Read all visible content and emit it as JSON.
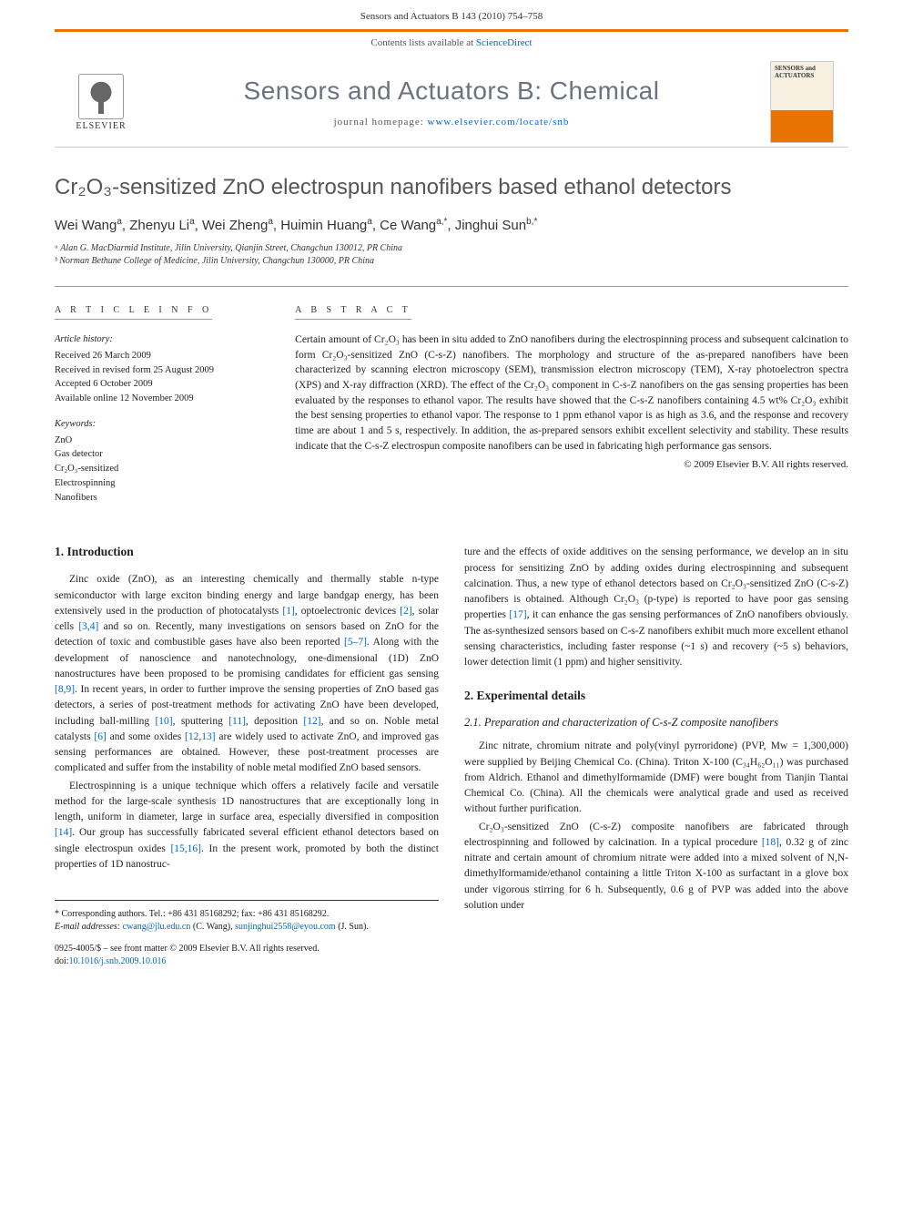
{
  "header": {
    "running_head": "Sensors and Actuators B 143 (2010) 754–758"
  },
  "banner": {
    "contents_text": "Contents lists available at ",
    "contents_link": "ScienceDirect",
    "journal_title": "Sensors and Actuators B: Chemical",
    "homepage_label": "journal homepage: ",
    "homepage_url": "www.elsevier.com/locate/snb",
    "publisher": "ELSEVIER",
    "cover_text": "SENSORS and ACTUATORS"
  },
  "article": {
    "title": "Cr₂O₃-sensitized ZnO electrospun nanofibers based ethanol detectors",
    "authors_html": "Wei Wang<sup>a</sup>, Zhenyu Li<sup>a</sup>, Wei Zheng<sup>a</sup>, Huimin Huang<sup>a</sup>, Ce Wang<sup>a,*</sup>, Jinghui Sun<sup>b,*</sup>",
    "affiliations": [
      "ᵃ Alan G. MacDiarmid Institute, Jilin University, Qianjin Street, Changchun 130012, PR China",
      "ᵇ Norman Bethune College of Medicine, Jilin University, Changchun 130000, PR China"
    ]
  },
  "info": {
    "section_label": "A R T I C L E   I N F O",
    "history_label": "Article history:",
    "history": [
      "Received 26 March 2009",
      "Received in revised form 25 August 2009",
      "Accepted 6 October 2009",
      "Available online 12 November 2009"
    ],
    "keywords_label": "Keywords:",
    "keywords": [
      "ZnO",
      "Gas detector",
      "Cr₂O₃-sensitized",
      "Electrospinning",
      "Nanofibers"
    ]
  },
  "abstract": {
    "section_label": "A B S T R A C T",
    "text": "Certain amount of Cr₂O₃ has been in situ added to ZnO nanofibers during the electrospinning process and subsequent calcination to form Cr₂O₃-sensitized ZnO (C-s-Z) nanofibers. The morphology and structure of the as-prepared nanofibers have been characterized by scanning electron microscopy (SEM), transmission electron microscopy (TEM), X-ray photoelectron spectra (XPS) and X-ray diffraction (XRD). The effect of the Cr₂O₃ component in C-s-Z nanofibers on the gas sensing properties has been evaluated by the responses to ethanol vapor. The results have showed that the C-s-Z nanofibers containing 4.5 wt% Cr₂O₃ exhibit the best sensing properties to ethanol vapor. The response to 1 ppm ethanol vapor is as high as 3.6, and the response and recovery time are about 1 and 5 s, respectively. In addition, the as-prepared sensors exhibit excellent selectivity and stability. These results indicate that the C-s-Z electrospun composite nanofibers can be used in fabricating high performance gas sensors.",
    "copyright": "© 2009 Elsevier B.V. All rights reserved."
  },
  "body": {
    "left": {
      "h1": "1. Introduction",
      "p1": "Zinc oxide (ZnO), as an interesting chemically and thermally stable n-type semiconductor with large exciton binding energy and large bandgap energy, has been extensively used in the production of photocatalysts [1], optoelectronic devices [2], solar cells [3,4] and so on. Recently, many investigations on sensors based on ZnO for the detection of toxic and combustible gases have also been reported [5–7]. Along with the development of nanoscience and nanotechnology, one-dimensional (1D) ZnO nanostructures have been proposed to be promising candidates for efficient gas sensing [8,9]. In recent years, in order to further improve the sensing properties of ZnO based gas detectors, a series of post-treatment methods for activating ZnO have been developed, including ball-milling [10], sputtering [11], deposition [12], and so on. Noble metal catalysts [6] and some oxides [12,13] are widely used to activate ZnO, and improved gas sensing performances are obtained. However, these post-treatment processes are complicated and suffer from the instability of noble metal modified ZnO based sensors.",
      "p2": "Electrospinning is a unique technique which offers a relatively facile and versatile method for the large-scale synthesis 1D nanostructures that are exceptionally long in length, uniform in diameter, large in surface area, especially diversified in composition [14]. Our group has successfully fabricated several efficient ethanol detectors based on single electrospun oxides [15,16]. In the present work, promoted by both the distinct properties of 1D nanostruc-"
    },
    "right": {
      "p1": "ture and the effects of oxide additives on the sensing performance, we develop an in situ process for sensitizing ZnO by adding oxides during electrospinning and subsequent calcination. Thus, a new type of ethanol detectors based on Cr₂O₃-sensitized ZnO (C-s-Z) nanofibers is obtained. Although Cr₂O₃ (p-type) is reported to have poor gas sensing properties [17], it can enhance the gas sensing performances of ZnO nanofibers obviously. The as-synthesized sensors based on C-s-Z nanofibers exhibit much more excellent ethanol sensing characteristics, including faster response (~1 s) and recovery (~5 s) behaviors, lower detection limit (1 ppm) and higher sensitivity.",
      "h2": "2. Experimental details",
      "h2_1": "2.1. Preparation and characterization of C-s-Z composite nanofibers",
      "p2": "Zinc nitrate, chromium nitrate and poly(vinyl pyrroridone) (PVP, Mw = 1,300,000) were supplied by Beijing Chemical Co. (China). Triton X-100 (C₃₄H₆₂O₁₁) was purchased from Aldrich. Ethanol and dimethylformamide (DMF) were bought from Tianjin Tiantai Chemical Co. (China). All the chemicals were analytical grade and used as received without further purification.",
      "p3": "Cr₂O₃-sensitized ZnO (C-s-Z) composite nanofibers are fabricated through electrospinning and followed by calcination. In a typical procedure [18], 0.32 g of zinc nitrate and certain amount of chromium nitrate were added into a mixed solvent of N,N-dimethylformamide/ethanol containing a little Triton X-100 as surfactant in a glove box under vigorous stirring for 6 h. Subsequently, 0.6 g of PVP was added into the above solution under"
    }
  },
  "footer": {
    "corresponding": "* Corresponding authors. Tel.: +86 431 85168292; fax: +86 431 85168292.",
    "email_label": "E-mail addresses: ",
    "email1": "cwang@jlu.edu.cn",
    "email1_name": " (C. Wang), ",
    "email2": "sunjinghui2558@eyou.com",
    "email2_name": " (J. Sun).",
    "issn": "0925-4005/$ – see front matter © 2009 Elsevier B.V. All rights reserved.",
    "doi_label": "doi:",
    "doi": "10.1016/j.snb.2009.10.016"
  },
  "styles": {
    "accent_color": "#e87300",
    "link_color": "#0066cc",
    "text_color": "#222222",
    "title_color": "#555555",
    "background": "#ffffff"
  }
}
